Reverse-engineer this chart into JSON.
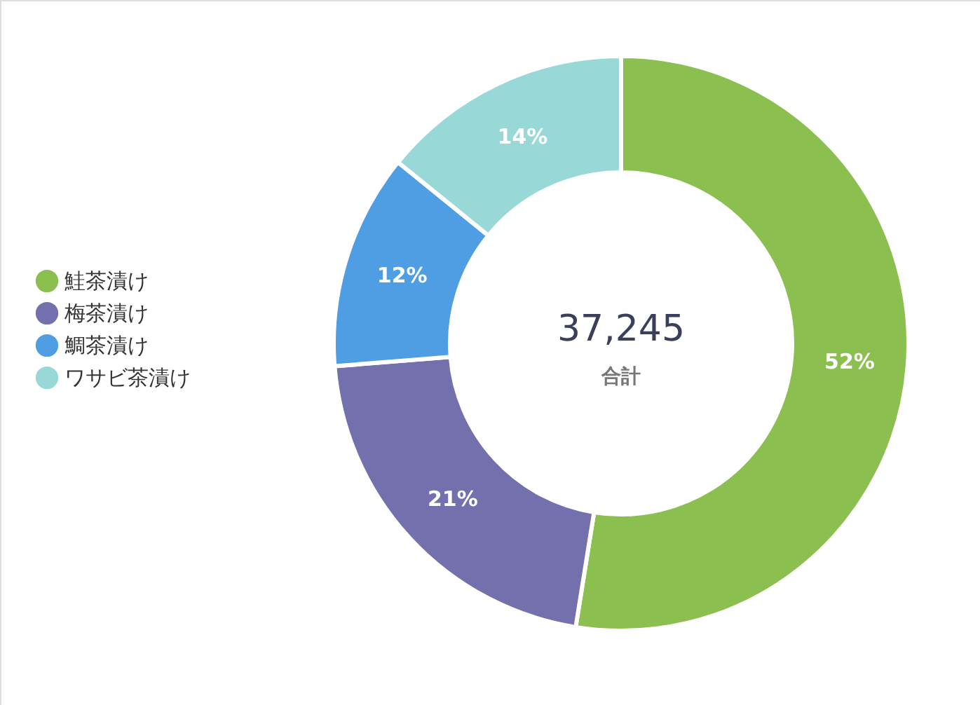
{
  "chart_data": {
    "type": "donut",
    "categories": [
      "鮭茶漬け",
      "梅茶漬け",
      "鯛茶漬け",
      "ワサビ茶漬け"
    ],
    "values": [
      52,
      21,
      12,
      14
    ],
    "colors": [
      "#8bbf4f",
      "#7470ad",
      "#4f9de3",
      "#98d9d8"
    ],
    "value_labels": [
      "52%",
      "21%",
      "12%",
      "14%"
    ],
    "annotations": [
      "37,245",
      "合計"
    ],
    "legend": "left"
  }
}
